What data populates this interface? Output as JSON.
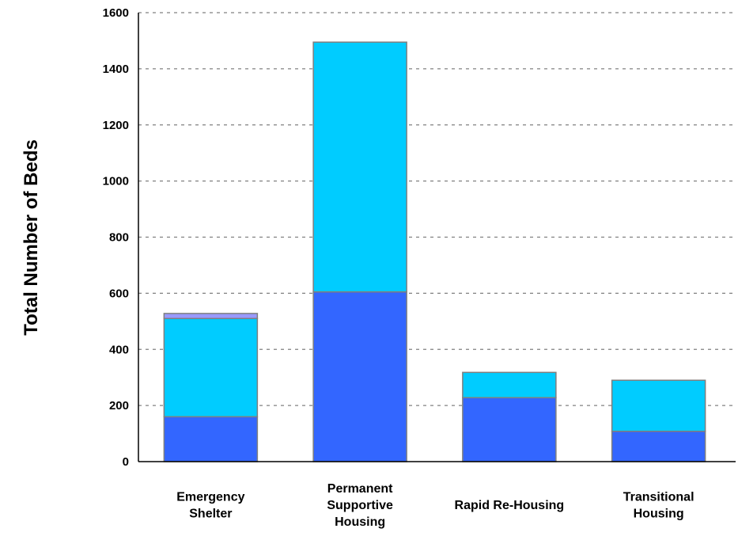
{
  "chart_data": {
    "type": "bar",
    "stacked": true,
    "ylabel": "Total Number of Beds",
    "xlabel": "",
    "ylim": [
      0,
      1600
    ],
    "yticks": [
      0,
      200,
      400,
      600,
      800,
      1000,
      1200,
      1400,
      1600
    ],
    "grid": true,
    "categories": [
      [
        "Emergency",
        "Shelter"
      ],
      [
        "Permanent",
        "Supportive",
        "Housing"
      ],
      [
        "Rapid Re-Housing"
      ],
      [
        "Transitional",
        "Housing"
      ]
    ],
    "series": [
      {
        "color": "#3366ff",
        "values": [
          160,
          605,
          228,
          108
        ]
      },
      {
        "color": "#00ccff",
        "values": [
          350,
          890,
          90,
          182
        ]
      },
      {
        "color": "#9999ff",
        "values": [
          18,
          0,
          0,
          0
        ]
      }
    ]
  }
}
